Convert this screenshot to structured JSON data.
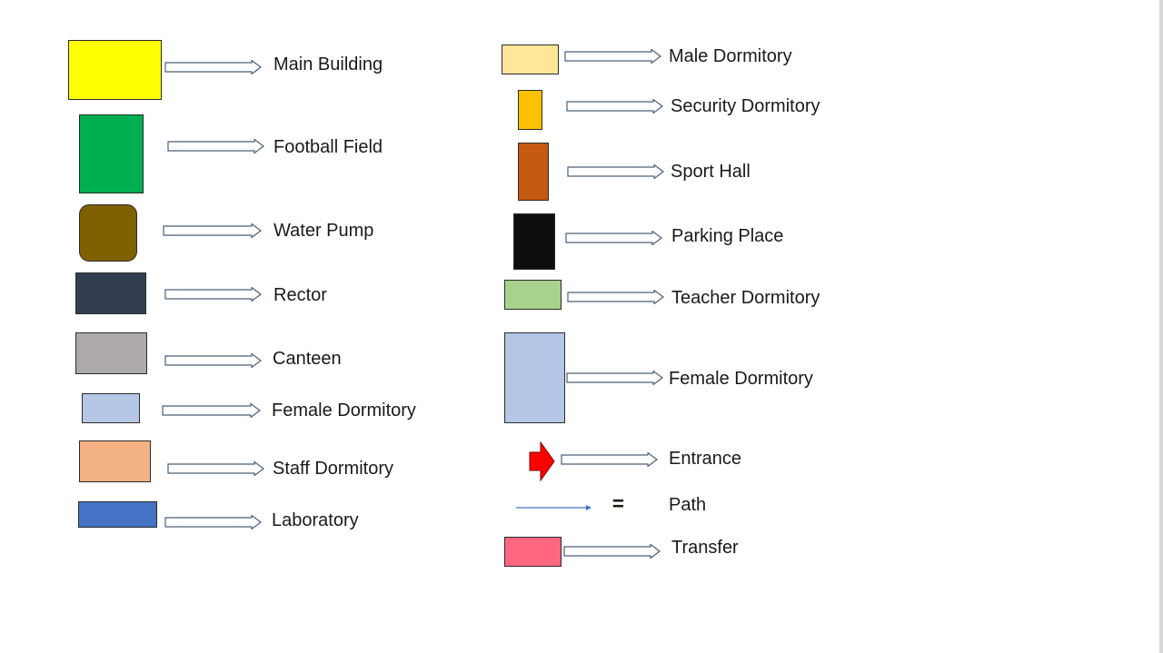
{
  "colors": {
    "main_building": "#ffff00",
    "football_field": "#00b050",
    "water_pump": "#7f6000",
    "rector": "#333f50",
    "canteen": "#aeaaaa",
    "female_dormitory": "#b4c7e7",
    "staff_dormitory": "#f4b183",
    "laboratory": "#4472c4",
    "male_dormitory": "#ffe699",
    "security_dormitory": "#ffc000",
    "sport_hall": "#c55a11",
    "parking_place": "#0d0d0d",
    "teacher_dormitory": "#a9d18e",
    "entrance": "#ff0000",
    "path": "#4472c4",
    "transfer": "#ff6680"
  },
  "legend": {
    "main_building": "Main Building",
    "football_field": "Football Field",
    "water_pump": "Water Pump",
    "rector": "Rector",
    "canteen": "Canteen",
    "female_dormitory_left": "Female Dormitory",
    "staff_dormitory": "Staff Dormitory",
    "laboratory": "Laboratory",
    "male_dormitory": "Male Dormitory",
    "security_dormitory": "Security Dormitory",
    "sport_hall": "Sport Hall",
    "parking_place": "Parking Place",
    "teacher_dormitory": "Teacher Dormitory",
    "female_dormitory_right": "Female Dormitory",
    "entrance": "Entrance",
    "path_equals": "=",
    "path": "Path",
    "transfer": "Transfer"
  }
}
